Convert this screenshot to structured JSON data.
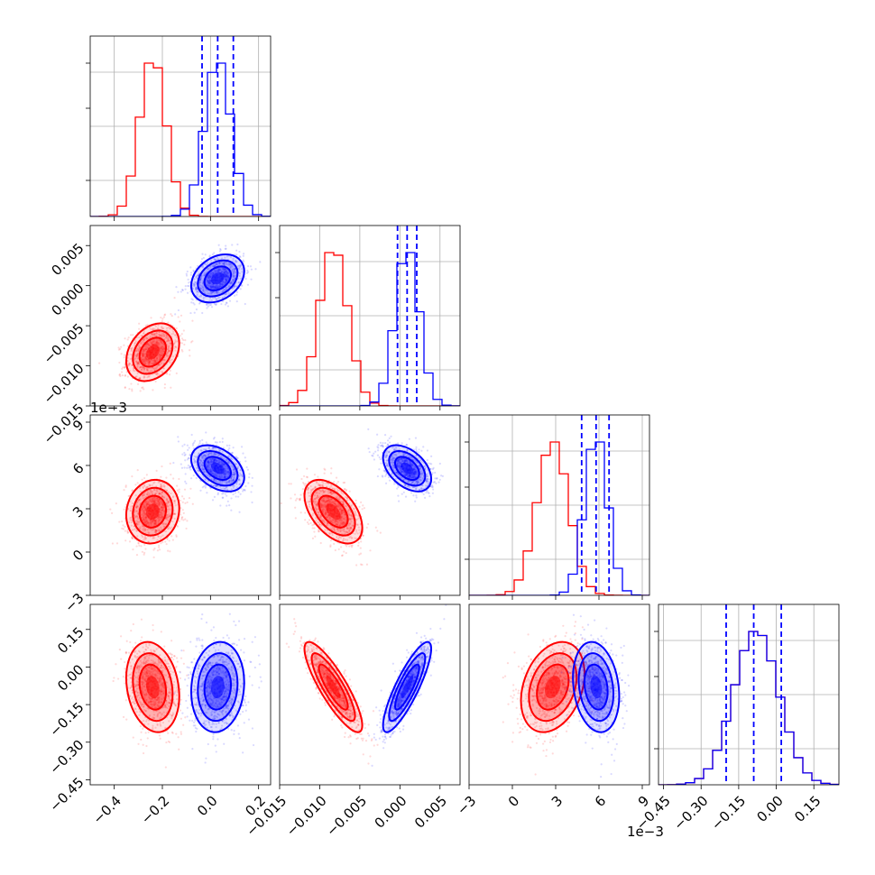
{
  "chart_data": {
    "type": "corner",
    "parameters": 4,
    "colors": {
      "series_a": "#ff0000",
      "series_b": "#0000ff"
    },
    "grid": true,
    "ranges": [
      [
        -0.5,
        0.25
      ],
      [
        -0.015,
        0.0075
      ],
      [
        -0.003,
        0.0095
      ],
      [
        -0.47,
        0.25
      ]
    ],
    "ticks": [
      {
        "values": [
          -0.4,
          -0.2,
          0.0,
          0.2
        ],
        "labels": [
          "−0.4",
          "−0.2",
          "0.0",
          "0.2"
        ]
      },
      {
        "values": [
          -0.015,
          -0.01,
          -0.005,
          0.0,
          0.005
        ],
        "labels": [
          "−0.015",
          "−0.010",
          "−0.005",
          "0.000",
          "0.005"
        ]
      },
      {
        "values": [
          -0.003,
          0.0,
          0.003,
          0.006,
          0.009
        ],
        "labels": [
          "−3",
          "0",
          "3",
          "6",
          "9"
        ],
        "offset": "1e−3"
      },
      {
        "values": [
          -0.45,
          -0.3,
          -0.15,
          0.0,
          0.15
        ],
        "labels": [
          "−0.45",
          "−0.30",
          "−0.15",
          "0.00",
          "0.15"
        ]
      }
    ],
    "series": [
      {
        "color": "#ff0000",
        "mean": [
          -0.24,
          -0.0083,
          0.0028,
          -0.08
        ],
        "std": [
          0.055,
          0.0018,
          0.0011,
          0.09
        ],
        "corr": [
          [
            1,
            0.3,
            0.1,
            -0.2
          ],
          [
            0.3,
            1,
            -0.5,
            -0.85
          ],
          [
            0.1,
            -0.5,
            1,
            0.3
          ],
          [
            -0.2,
            -0.85,
            0.3,
            1
          ]
        ]
      },
      {
        "color": "#0000ff",
        "mean": [
          0.03,
          0.0009,
          0.0058,
          -0.08
        ],
        "std": [
          0.055,
          0.0015,
          0.0008,
          0.09
        ],
        "corr": [
          [
            1,
            0.3,
            -0.4,
            0.1
          ],
          [
            0.3,
            1,
            -0.45,
            0.85
          ],
          [
            -0.4,
            -0.45,
            1,
            -0.2
          ],
          [
            0.1,
            0.85,
            -0.2,
            1
          ]
        ]
      }
    ],
    "quantile_lines_blue": [
      [
        -0.035,
        0.03,
        0.095
      ],
      [
        -0.0003,
        0.0009,
        0.0021
      ],
      [
        0.0048,
        0.0058,
        0.0067
      ],
      [
        -0.2,
        -0.09,
        0.02
      ]
    ]
  }
}
